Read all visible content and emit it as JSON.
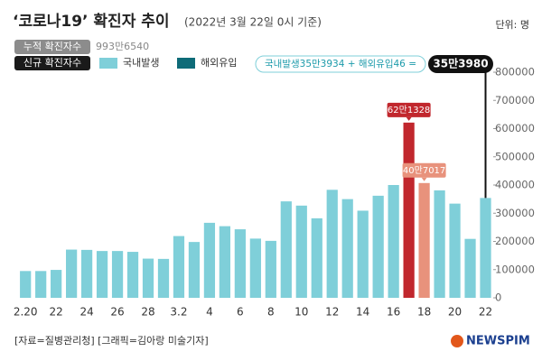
{
  "chart_data": {
    "type": "bar",
    "title": "‘코로나19’ 확진자 추이",
    "subtitle": "(2022년 3월 22일 0시 기준)",
    "unit": "단위: 명",
    "cumulative": {
      "label": "누적 확진자수",
      "value": "993만6540"
    },
    "new_label": "신규 확진자수",
    "categories": [
      "2.20",
      null,
      "22",
      null,
      "24",
      null,
      "26",
      null,
      "28",
      null,
      "3.2",
      null,
      "4",
      null,
      "6",
      null,
      "8",
      null,
      "10",
      null,
      "12",
      null,
      "14",
      null,
      "16",
      null,
      "18",
      null,
      "20",
      null,
      "22"
    ],
    "series": [
      {
        "name": "국내발생",
        "color": "#7fcfd9",
        "colors": [
          "#7fcfd9",
          "#7fcfd9",
          "#7fcfd9",
          "#7fcfd9",
          "#7fcfd9",
          "#7fcfd9",
          "#7fcfd9",
          "#7fcfd9",
          "#7fcfd9",
          "#7fcfd9",
          "#7fcfd9",
          "#7fcfd9",
          "#7fcfd9",
          "#7fcfd9",
          "#7fcfd9",
          "#7fcfd9",
          "#7fcfd9",
          "#7fcfd9",
          "#7fcfd9",
          "#7fcfd9",
          "#7fcfd9",
          "#7fcfd9",
          "#7fcfd9",
          "#7fcfd9",
          "#7fcfd9",
          "#c1272d",
          "#e8927c",
          "#7fcfd9",
          "#7fcfd9",
          "#7fcfd9",
          "#7fcfd9"
        ],
        "values": [
          95000,
          95000,
          99000,
          171000,
          170000,
          166000,
          166000,
          163000,
          139000,
          138000,
          219000,
          198000,
          266000,
          254000,
          243000,
          210000,
          202000,
          342000,
          327000,
          282000,
          383000,
          350000,
          309000,
          362000,
          400000,
          621328,
          407017,
          381000,
          334000,
          209000,
          353934
        ],
        "value_labels": [
          null,
          null,
          null,
          null,
          null,
          null,
          null,
          null,
          null,
          null,
          null,
          null,
          null,
          null,
          null,
          null,
          null,
          null,
          null,
          null,
          null,
          null,
          null,
          null,
          null,
          "62만1328",
          "40만7017",
          null,
          null,
          null,
          null
        ]
      },
      {
        "name": "해외유입",
        "color": "#0e6b78",
        "values": [
          null,
          null,
          null,
          null,
          null,
          null,
          null,
          null,
          null,
          null,
          null,
          null,
          null,
          null,
          null,
          null,
          null,
          null,
          null,
          null,
          null,
          null,
          null,
          null,
          null,
          null,
          null,
          null,
          null,
          null,
          46
        ]
      }
    ],
    "annotation": {
      "text": "국내발생35만3934 + 해외유입46 =",
      "total": 353980,
      "total_label": "35만3980"
    },
    "ylim": [
      0,
      800000
    ],
    "yticks": [
      0,
      100000,
      200000,
      300000,
      400000,
      500000,
      600000,
      700000,
      800000
    ],
    "source": "[자료=질병관리청] [그래픽=김아랑 미술기자]",
    "logo": "NEWSPIM"
  }
}
